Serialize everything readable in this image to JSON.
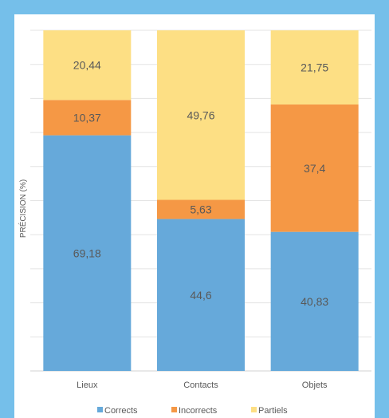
{
  "chart_data": {
    "type": "bar",
    "stacked": true,
    "categories": [
      "Lieux",
      "Contacts",
      "Objets"
    ],
    "series": [
      {
        "name": "Corrects",
        "values": [
          69.18,
          44.6,
          40.83
        ],
        "labels": [
          "69,18",
          "44,6",
          "40,83"
        ],
        "color": "#66a9da"
      },
      {
        "name": "Incorrects",
        "values": [
          10.37,
          5.63,
          37.4
        ],
        "labels": [
          "10,37",
          "5,63",
          "37,4"
        ],
        "color": "#f59845"
      },
      {
        "name": "Partiels",
        "values": [
          20.44,
          49.76,
          21.75
        ],
        "labels": [
          "20,44",
          "49,76",
          "21,75"
        ],
        "color": "#fddf84"
      }
    ],
    "ylabel": "PRÉCISION (%)",
    "ylim": [
      0,
      100
    ],
    "grid": true,
    "legend": "bottom"
  }
}
